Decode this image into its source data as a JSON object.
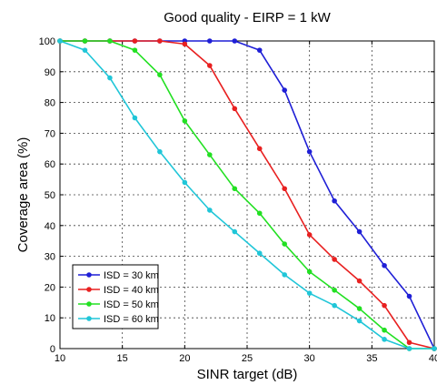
{
  "chart_data": {
    "type": "line",
    "title": "Good quality - EIRP = 1 kW",
    "xlabel": "SINR target (dB)",
    "ylabel": "Coverage area (%)",
    "xlim": [
      10,
      40
    ],
    "ylim": [
      0,
      100
    ],
    "xticks": [
      10,
      15,
      20,
      25,
      30,
      35,
      40
    ],
    "yticks": [
      0,
      10,
      20,
      30,
      40,
      50,
      60,
      70,
      80,
      90,
      100
    ],
    "grid": true,
    "legend_position": "bottom-left",
    "series": [
      {
        "name": "ISD = 30 km",
        "color": "#1f1fd6",
        "x": [
          10,
          12,
          14,
          16,
          18,
          20,
          22,
          24,
          26,
          28,
          30,
          32,
          34,
          36,
          38,
          40
        ],
        "y": [
          100,
          100,
          100,
          100,
          100,
          100,
          100,
          100,
          97,
          84,
          64,
          48,
          38,
          27,
          17,
          0
        ]
      },
      {
        "name": "ISD = 40 km",
        "color": "#e82020",
        "x": [
          10,
          12,
          14,
          16,
          18,
          20,
          22,
          24,
          26,
          28,
          30,
          32,
          34,
          36,
          38,
          40
        ],
        "y": [
          100,
          100,
          100,
          100,
          100,
          99,
          92,
          78,
          65,
          52,
          37,
          29,
          22,
          14,
          2,
          0
        ]
      },
      {
        "name": "ISD = 50 km",
        "color": "#22e022",
        "x": [
          10,
          12,
          14,
          16,
          18,
          20,
          22,
          24,
          26,
          28,
          30,
          32,
          34,
          36,
          38,
          40
        ],
        "y": [
          100,
          100,
          100,
          97,
          89,
          74,
          63,
          52,
          44,
          34,
          25,
          19,
          13,
          6,
          0,
          0
        ]
      },
      {
        "name": "ISD = 60 km",
        "color": "#20c6d8",
        "x": [
          10,
          12,
          14,
          16,
          18,
          20,
          22,
          24,
          26,
          28,
          30,
          32,
          34,
          36,
          38,
          40
        ],
        "y": [
          100,
          97,
          88,
          75,
          64,
          54,
          45,
          38,
          31,
          24,
          18,
          14,
          9,
          3,
          0,
          0
        ]
      }
    ]
  }
}
